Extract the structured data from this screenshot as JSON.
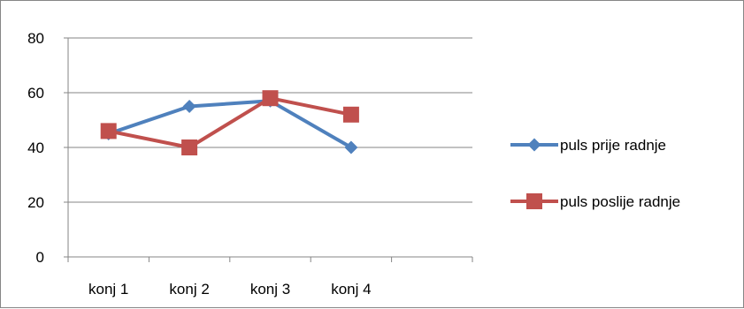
{
  "chart_data": {
    "type": "line",
    "categories": [
      "konj 1",
      "konj 2",
      "konj 3",
      "konj 4"
    ],
    "x_slots": 5,
    "series": [
      {
        "name": "puls prije radnje",
        "values": [
          45,
          55,
          57,
          40
        ],
        "color": "#4F81BD",
        "marker": "diamond"
      },
      {
        "name": "puls poslije radnje",
        "values": [
          46,
          40,
          58,
          52
        ],
        "color": "#C0504D",
        "marker": "square"
      }
    ],
    "yticks": [
      0,
      20,
      40,
      60,
      80
    ],
    "ylim": [
      0,
      80
    ],
    "grid": true,
    "legend": "right",
    "title": "",
    "xlabel": "",
    "ylabel": ""
  }
}
